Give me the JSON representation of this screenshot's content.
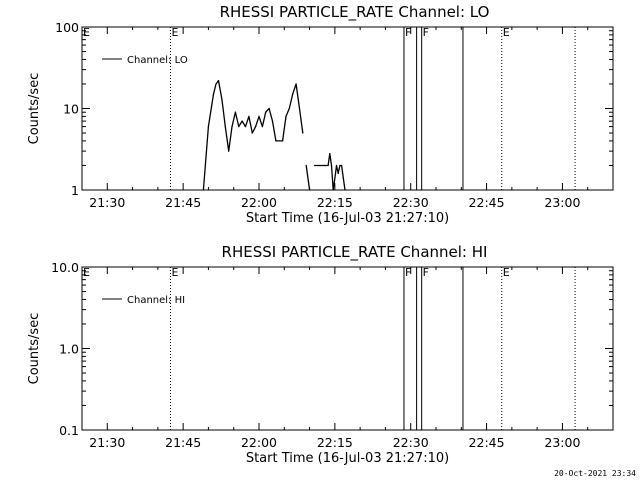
{
  "footer_stamp": "20-Oct-2021 23:34",
  "chart_data": [
    {
      "type": "line",
      "title": "RHESSI PARTICLE_RATE Channel: LO",
      "xlabel": "Start Time (16-Jul-03 21:27:10)",
      "ylabel": "Counts/sec",
      "yscale": "log",
      "xlim": [
        "21:25",
        "23:10"
      ],
      "ylim": [
        1,
        100
      ],
      "x_ticks": [
        "21:30",
        "21:45",
        "22:00",
        "22:15",
        "22:30",
        "22:45",
        "23:00"
      ],
      "y_ticks": [
        {
          "value": 1,
          "label": "1"
        },
        {
          "value": 10,
          "label": "10"
        },
        {
          "value": 100,
          "label": "100"
        }
      ],
      "legend": {
        "position": "top-left",
        "entries": [
          "Channel: LO"
        ]
      },
      "series": [
        {
          "name": "Channel: LO",
          "x": [
            "21:49:00",
            "21:50:00",
            "21:51:00",
            "21:51:30",
            "21:52:00",
            "21:52:40",
            "21:53:20",
            "21:54:00",
            "21:54:40",
            "21:55:20",
            "21:56:00",
            "21:56:40",
            "21:57:20",
            "21:58:00",
            "21:58:40",
            "21:59:20",
            "22:00:00",
            "22:00:40",
            "22:01:20",
            "22:02:00",
            "22:02:40",
            "22:03:20",
            "22:04:00",
            "22:04:40",
            "22:05:20",
            "22:06:00",
            "22:06:40",
            "22:07:20",
            "22:08:00",
            "22:08:40"
          ],
          "y": [
            1,
            6,
            15,
            20,
            22,
            13,
            6,
            3,
            6,
            9,
            6,
            7,
            6,
            8,
            5,
            6,
            8,
            6,
            9,
            10,
            7,
            4,
            4,
            4,
            8,
            10,
            15,
            20,
            10,
            5
          ]
        },
        {
          "name": "",
          "x": [
            "22:09:20",
            "22:10:00"
          ],
          "y": [
            2,
            1
          ]
        },
        {
          "name": "",
          "x": [
            "22:11:00",
            "22:12:00",
            "22:13:00",
            "22:13:40",
            "22:14:00",
            "22:14:20",
            "22:14:40",
            "22:15:00",
            "22:15:20",
            "22:15:40",
            "22:16:00",
            "22:16:20",
            "22:16:40",
            "22:17:00"
          ],
          "y": [
            2,
            2,
            2,
            2,
            2.8,
            2,
            1,
            1.4,
            2,
            1.6,
            2,
            2,
            1.4,
            1
          ]
        }
      ],
      "vertical_markers": [
        {
          "time": "21:42:30",
          "style": "dotted",
          "label": "E"
        },
        {
          "time": "22:28:40",
          "style": "solid",
          "label": "F"
        },
        {
          "time": "22:31:10",
          "style": "solid",
          "label": ""
        },
        {
          "time": "22:32:10",
          "style": "solid",
          "label": "F"
        },
        {
          "time": "22:40:20",
          "style": "solid",
          "label": ""
        },
        {
          "time": "22:48:00",
          "style": "dotted",
          "label": "E"
        },
        {
          "time": "23:02:30",
          "style": "dotted",
          "label": ""
        }
      ],
      "left_edge_label": "E"
    },
    {
      "type": "line",
      "title": "RHESSI PARTICLE_RATE Channel: HI",
      "xlabel": "Start Time (16-Jul-03 21:27:10)",
      "ylabel": "Counts/sec",
      "yscale": "log",
      "xlim": [
        "21:25",
        "23:10"
      ],
      "ylim": [
        0.1,
        10
      ],
      "x_ticks": [
        "21:30",
        "21:45",
        "22:00",
        "22:15",
        "22:30",
        "22:45",
        "23:00"
      ],
      "y_ticks": [
        {
          "value": 0.1,
          "label": "0.1"
        },
        {
          "value": 1,
          "label": "1.0"
        },
        {
          "value": 10,
          "label": "10.0"
        }
      ],
      "legend": {
        "position": "top-left",
        "entries": [
          "Channel: HI"
        ]
      },
      "series": [
        {
          "name": "Channel: HI",
          "x": [],
          "y": []
        }
      ],
      "vertical_markers": [
        {
          "time": "21:42:30",
          "style": "dotted",
          "label": "E"
        },
        {
          "time": "22:28:40",
          "style": "solid",
          "label": "F"
        },
        {
          "time": "22:31:10",
          "style": "solid",
          "label": ""
        },
        {
          "time": "22:32:10",
          "style": "solid",
          "label": "F"
        },
        {
          "time": "22:40:20",
          "style": "solid",
          "label": ""
        },
        {
          "time": "22:48:00",
          "style": "dotted",
          "label": "E"
        },
        {
          "time": "23:02:30",
          "style": "dotted",
          "label": ""
        }
      ],
      "left_edge_label": "E"
    }
  ]
}
